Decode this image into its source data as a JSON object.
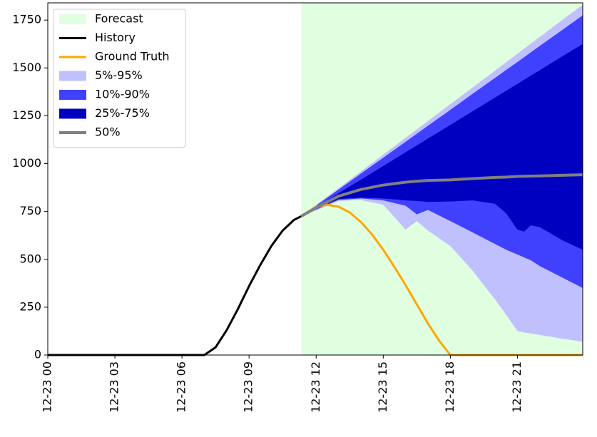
{
  "chart_data": {
    "type": "line",
    "xlim": [
      0,
      23.92
    ],
    "ylim": [
      0,
      1840
    ],
    "xticks": [
      {
        "value": 0,
        "label": "12-23 00"
      },
      {
        "value": 3,
        "label": "12-23 03"
      },
      {
        "value": 6,
        "label": "12-23 06"
      },
      {
        "value": 9,
        "label": "12-23 09"
      },
      {
        "value": 12,
        "label": "12-23 12"
      },
      {
        "value": 15,
        "label": "12-23 15"
      },
      {
        "value": 18,
        "label": "12-23 18"
      },
      {
        "value": 21,
        "label": "12-23 21"
      }
    ],
    "yticks": [
      0,
      250,
      500,
      750,
      1000,
      1250,
      1500,
      1750
    ],
    "legend": "upper left",
    "forecast_region": {
      "name": "Forecast",
      "color": "#e0ffe0",
      "start": 11.33
    },
    "series": [
      {
        "name": "History",
        "kind": "line",
        "color": "#000000",
        "x": [
          0,
          1,
          2,
          3,
          4,
          5,
          6,
          7,
          7.5,
          8,
          8.5,
          9,
          9.5,
          10,
          10.5,
          11,
          11.33
        ],
        "values": [
          0,
          0,
          0,
          0,
          0,
          0,
          0,
          0,
          40,
          130,
          240,
          360,
          470,
          570,
          650,
          705,
          725
        ]
      },
      {
        "name": "Ground Truth",
        "kind": "line",
        "color": "#ffa500",
        "x": [
          11.33,
          12,
          12.5,
          13,
          13.5,
          14,
          14.5,
          15,
          15.5,
          16,
          16.5,
          17,
          17.5,
          18,
          19,
          20,
          21,
          22,
          23,
          23.92
        ],
        "values": [
          725,
          775,
          785,
          775,
          745,
          695,
          630,
          550,
          460,
          365,
          265,
          165,
          75,
          0,
          0,
          0,
          0,
          0,
          0,
          0
        ]
      },
      {
        "name": "5%-95%",
        "kind": "band",
        "color": "#c0c0ff",
        "x": [
          11.33,
          12,
          13,
          14,
          15,
          16,
          16.5,
          17,
          18,
          19,
          20,
          20.5,
          21,
          21.3,
          21.6,
          22,
          23,
          23.92
        ],
        "lower": [
          725,
          755,
          805,
          810,
          785,
          655,
          700,
          650,
          570,
          440,
          290,
          210,
          125,
          118,
          112,
          105,
          85,
          70
        ],
        "upper": [
          725,
          784,
          872,
          959,
          1047,
          1135,
          1179,
          1223,
          1311,
          1398,
          1486,
          1530,
          1574,
          1600,
          1627,
          1662,
          1750,
          1830
        ]
      },
      {
        "name": "10%-90%",
        "kind": "band",
        "color": "#4040ff",
        "x": [
          11.33,
          12,
          13,
          14,
          15,
          16,
          16.5,
          17,
          18,
          19,
          20,
          20.5,
          21,
          21.3,
          21.6,
          22,
          23,
          23.92
        ],
        "lower": [
          725,
          760,
          810,
          818,
          808,
          780,
          735,
          758,
          700,
          640,
          580,
          550,
          525,
          510,
          495,
          465,
          405,
          350
        ],
        "upper": [
          725,
          781,
          864,
          948,
          1031,
          1114,
          1156,
          1198,
          1281,
          1365,
          1448,
          1490,
          1531,
          1556,
          1581,
          1615,
          1698,
          1775
        ]
      },
      {
        "name": "25%-75%",
        "kind": "band",
        "color": "#0000c0",
        "x": [
          11.33,
          12,
          13,
          14,
          15,
          16,
          16.5,
          17,
          18,
          19,
          20,
          20.5,
          21,
          21.3,
          21.6,
          22,
          23,
          23.92
        ],
        "lower": [
          725,
          765,
          815,
          822,
          818,
          808,
          805,
          800,
          802,
          808,
          790,
          740,
          655,
          645,
          678,
          668,
          600,
          550
        ],
        "upper": [
          725,
          773,
          845,
          916,
          988,
          1059,
          1095,
          1131,
          1202,
          1274,
          1345,
          1381,
          1417,
          1438,
          1460,
          1488,
          1560,
          1625
        ]
      },
      {
        "name": "50%",
        "kind": "line",
        "color": "#808080",
        "width": 4,
        "x": [
          11.33,
          12,
          13,
          14,
          15,
          16,
          16.5,
          17,
          18,
          19,
          20,
          20.5,
          21,
          21.3,
          21.6,
          22,
          23,
          23.92
        ],
        "values": [
          725,
          770,
          830,
          865,
          888,
          903,
          908,
          912,
          915,
          922,
          928,
          930,
          933,
          934,
          935,
          936,
          939,
          942
        ]
      }
    ]
  }
}
